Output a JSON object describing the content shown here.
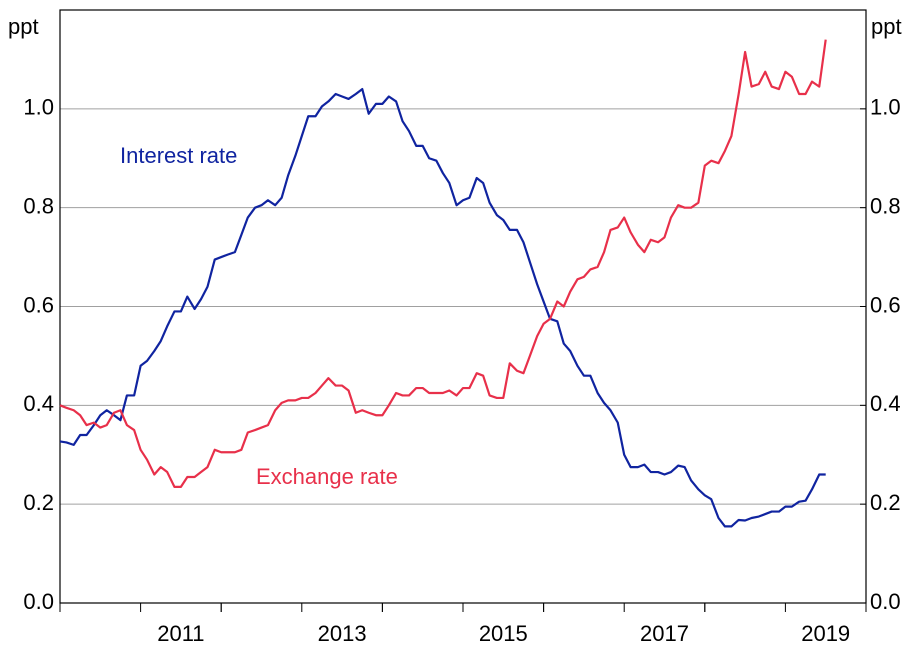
{
  "chart_data": {
    "type": "line",
    "ylabel": "ppt",
    "y2label": "ppt",
    "xlim": [
      2010,
      2020
    ],
    "xticks": [
      2011,
      2013,
      2015,
      2017,
      2019
    ],
    "ylim": [
      0,
      1.2
    ],
    "yticks": [
      {
        "value": 0,
        "label": "0.0"
      },
      0.2,
      0.4,
      0.6,
      0.8,
      {
        "value": 1,
        "label": "1.0"
      }
    ],
    "y2lim": [
      0,
      1.2
    ],
    "y2ticks": [
      {
        "value": 0,
        "label": "0.0"
      },
      0.2,
      0.4,
      0.6,
      0.8,
      {
        "value": 1,
        "label": "1.0"
      }
    ],
    "grid": true,
    "x": [
      2010.0,
      2010.08,
      2010.17,
      2010.25,
      2010.33,
      2010.42,
      2010.5,
      2010.58,
      2010.67,
      2010.75,
      2010.83,
      2010.92,
      2011.0,
      2011.08,
      2011.17,
      2011.25,
      2011.33,
      2011.42,
      2011.5,
      2011.58,
      2011.67,
      2011.75,
      2011.83,
      2011.92,
      2012.0,
      2012.08,
      2012.17,
      2012.25,
      2012.33,
      2012.42,
      2012.5,
      2012.58,
      2012.67,
      2012.75,
      2012.83,
      2012.92,
      2013.0,
      2013.08,
      2013.17,
      2013.25,
      2013.33,
      2013.42,
      2013.5,
      2013.58,
      2013.67,
      2013.75,
      2013.83,
      2013.92,
      2014.0,
      2014.08,
      2014.17,
      2014.25,
      2014.33,
      2014.42,
      2014.5,
      2014.58,
      2014.67,
      2014.75,
      2014.83,
      2014.92,
      2015.0,
      2015.08,
      2015.17,
      2015.25,
      2015.33,
      2015.42,
      2015.5,
      2015.58,
      2015.67,
      2015.75,
      2015.83,
      2015.92,
      2016.0,
      2016.08,
      2016.17,
      2016.25,
      2016.33,
      2016.42,
      2016.5,
      2016.58,
      2016.67,
      2016.75,
      2016.83,
      2016.92,
      2017.0,
      2017.08,
      2017.17,
      2017.25,
      2017.33,
      2017.42,
      2017.5,
      2017.58,
      2017.67,
      2017.75,
      2017.83,
      2017.92,
      2018.0,
      2018.08,
      2018.17,
      2018.25,
      2018.33,
      2018.42,
      2018.5,
      2018.58,
      2018.67,
      2018.75,
      2018.83,
      2018.92,
      2019.0,
      2019.08,
      2019.17,
      2019.25,
      2019.33,
      2019.42,
      2019.5
    ],
    "series": [
      {
        "name": "Interest rate",
        "color": "#1024a0",
        "values": [
          0.327,
          0.325,
          0.32,
          0.34,
          0.34,
          0.36,
          0.38,
          0.39,
          0.38,
          0.37,
          0.42,
          0.42,
          0.48,
          0.49,
          0.51,
          0.53,
          0.56,
          0.59,
          0.59,
          0.62,
          0.595,
          0.615,
          0.64,
          0.695,
          0.7,
          0.705,
          0.71,
          0.745,
          0.78,
          0.8,
          0.805,
          0.815,
          0.805,
          0.82,
          0.865,
          0.905,
          0.945,
          0.985,
          0.985,
          1.005,
          1.015,
          1.03,
          1.025,
          1.02,
          1.03,
          1.04,
          0.99,
          1.01,
          1.01,
          1.025,
          1.015,
          0.975,
          0.955,
          0.925,
          0.925,
          0.9,
          0.895,
          0.87,
          0.85,
          0.805,
          0.815,
          0.82,
          0.86,
          0.85,
          0.81,
          0.785,
          0.775,
          0.755,
          0.755,
          0.73,
          0.69,
          0.645,
          0.61,
          0.575,
          0.57,
          0.525,
          0.51,
          0.48,
          0.46,
          0.46,
          0.425,
          0.405,
          0.39,
          0.365,
          0.3,
          0.275,
          0.275,
          0.28,
          0.265,
          0.265,
          0.26,
          0.265,
          0.278,
          0.275,
          0.248,
          0.23,
          0.218,
          0.21,
          0.172,
          0.155,
          0.155,
          0.168,
          0.167,
          0.172,
          0.175,
          0.18,
          0.185,
          0.185,
          0.195,
          0.195,
          0.205,
          0.207,
          0.23,
          0.26,
          0.26
        ]
      },
      {
        "name": "Exchange rate",
        "color": "#e8304a",
        "values": [
          0.4,
          0.395,
          0.39,
          0.38,
          0.36,
          0.365,
          0.355,
          0.36,
          0.385,
          0.39,
          0.36,
          0.35,
          0.31,
          0.29,
          0.26,
          0.275,
          0.265,
          0.235,
          0.235,
          0.255,
          0.255,
          0.265,
          0.275,
          0.31,
          0.305,
          0.305,
          0.305,
          0.31,
          0.345,
          0.35,
          0.355,
          0.36,
          0.39,
          0.405,
          0.41,
          0.41,
          0.415,
          0.415,
          0.425,
          0.44,
          0.455,
          0.44,
          0.44,
          0.43,
          0.385,
          0.39,
          0.385,
          0.38,
          0.38,
          0.4,
          0.425,
          0.42,
          0.42,
          0.435,
          0.435,
          0.425,
          0.425,
          0.425,
          0.43,
          0.42,
          0.435,
          0.435,
          0.465,
          0.46,
          0.42,
          0.415,
          0.415,
          0.485,
          0.47,
          0.465,
          0.5,
          0.54,
          0.565,
          0.575,
          0.61,
          0.6,
          0.63,
          0.655,
          0.66,
          0.675,
          0.68,
          0.71,
          0.755,
          0.76,
          0.78,
          0.75,
          0.725,
          0.71,
          0.735,
          0.73,
          0.74,
          0.78,
          0.805,
          0.8,
          0.8,
          0.81,
          0.885,
          0.895,
          0.89,
          0.915,
          0.945,
          1.03,
          1.115,
          1.045,
          1.05,
          1.075,
          1.045,
          1.04,
          1.075,
          1.065,
          1.03,
          1.03,
          1.055,
          1.045,
          1.14
        ]
      }
    ]
  }
}
